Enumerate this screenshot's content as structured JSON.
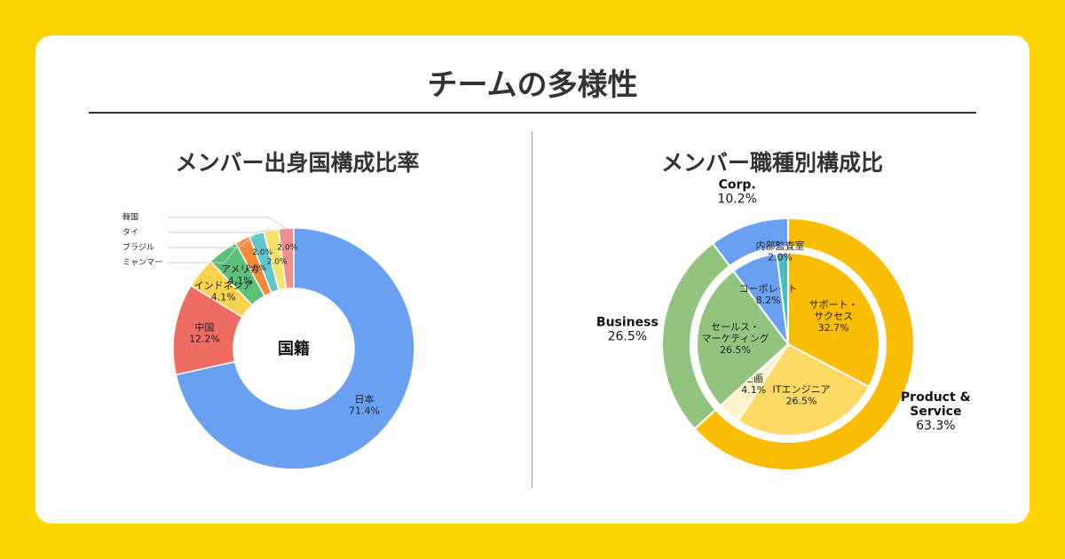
{
  "page": {
    "title": "チームの多様性",
    "background": "#ffd600"
  },
  "chart_data": [
    {
      "type": "pie",
      "title": "メンバー出身国構成比率",
      "center_label": "国籍",
      "donut": true,
      "slices": [
        {
          "label": "日本",
          "value": 71.4,
          "value_label": "71.4%",
          "color": "#6aa0f2"
        },
        {
          "label": "中国",
          "value": 12.2,
          "value_label": "12.2%",
          "color": "#ee6c61"
        },
        {
          "label": "インドネシア",
          "value": 4.1,
          "value_label": "4.1%",
          "color": "#fcd34d"
        },
        {
          "label": "アメリカ",
          "value": 4.1,
          "value_label": "4.1%",
          "color": "#5cbf7a"
        },
        {
          "label": "ミャンマー",
          "value": 2.0,
          "value_label": "2.0%",
          "color": "#f58a3c"
        },
        {
          "label": "ブラジル",
          "value": 2.0,
          "value_label": "2.0%",
          "color": "#5fc6cf"
        },
        {
          "label": "タイ",
          "value": 2.0,
          "value_label": "2.0%",
          "color": "#f7e36a"
        },
        {
          "label": "韓国",
          "value": 2.0,
          "value_label": "2.0%",
          "color": "#ef8f8f"
        }
      ]
    },
    {
      "type": "pie",
      "title": "メンバー職種別構成比",
      "donut": false,
      "outer_ring": [
        {
          "label": "Product & Service",
          "value": 63.3,
          "value_label": "63.3%",
          "color": "#fbbc04"
        },
        {
          "label": "Business",
          "value": 26.5,
          "value_label": "26.5%",
          "color": "#93c47d"
        },
        {
          "label": "Corp.",
          "value": 10.2,
          "value_label": "10.2%",
          "color": "#6aa0f2"
        }
      ],
      "inner_pie": [
        {
          "label": "サポート・サクセス",
          "value": 32.7,
          "value_label": "32.7%",
          "color": "#fbbc04"
        },
        {
          "label": "ITエンジニア",
          "value": 26.5,
          "value_label": "26.5%",
          "color": "#ffd966"
        },
        {
          "label": "企画",
          "value": 4.1,
          "value_label": "4.1%",
          "color": "#fff2cc"
        },
        {
          "label": "セールス・マーケティング",
          "value": 26.5,
          "value_label": "26.5%",
          "color": "#93c47d"
        },
        {
          "label": "コーポレート",
          "value": 8.2,
          "value_label": "8.2%",
          "color": "#6aa0f2"
        },
        {
          "label": "内部監査室",
          "value": 2.0,
          "value_label": "2.0%",
          "color": "#46bdc6"
        }
      ]
    }
  ]
}
